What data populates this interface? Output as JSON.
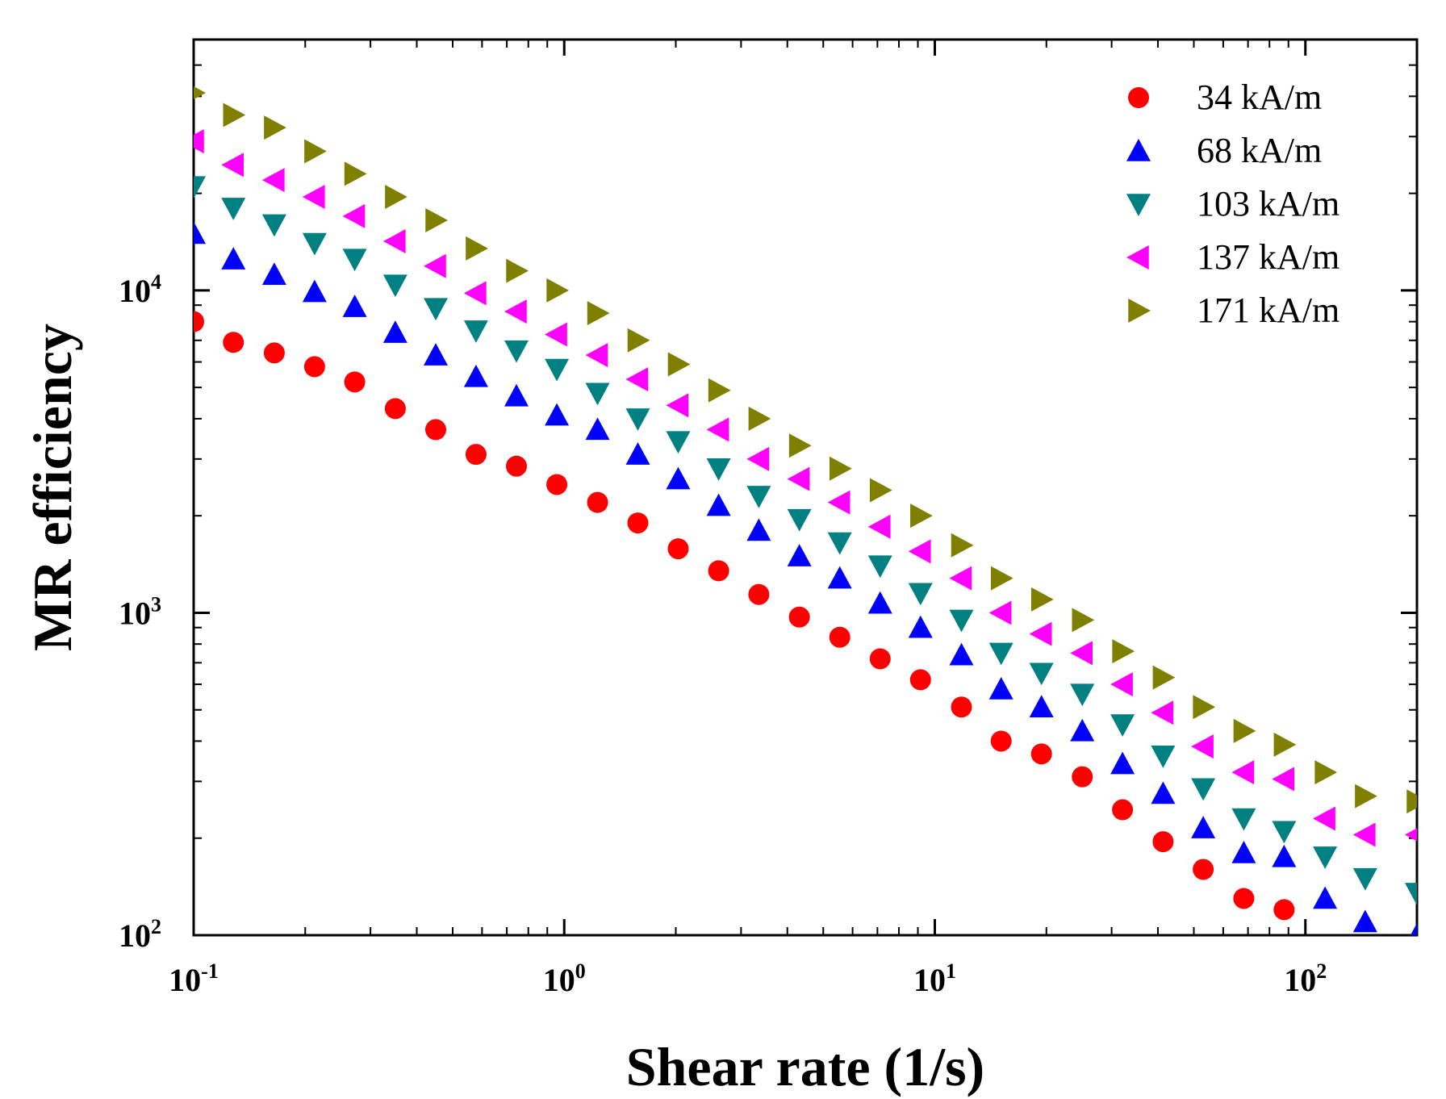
{
  "chart_data": {
    "type": "scatter",
    "title": "",
    "xlabel": "Shear rate (1/s)",
    "ylabel": "MR efficiency",
    "xscale": "log",
    "yscale": "log",
    "xlim": [
      0.1,
      200
    ],
    "ylim": [
      100,
      60000
    ],
    "legend_position": "top-right",
    "x_ticks": [
      {
        "value": 0.1,
        "base": "10",
        "exp": "-1"
      },
      {
        "value": 1,
        "base": "10",
        "exp": "0"
      },
      {
        "value": 10,
        "base": "10",
        "exp": "1"
      },
      {
        "value": 100,
        "base": "10",
        "exp": "2"
      }
    ],
    "y_ticks": [
      {
        "value": 100,
        "base": "10",
        "exp": "2"
      },
      {
        "value": 1000,
        "base": "10",
        "exp": "3"
      },
      {
        "value": 10000,
        "base": "10",
        "exp": "4"
      }
    ],
    "x": [
      0.1,
      0.128,
      0.165,
      0.212,
      0.272,
      0.35,
      0.45,
      0.578,
      0.743,
      0.955,
      1.23,
      1.58,
      2.03,
      2.61,
      3.35,
      4.31,
      5.54,
      7.12,
      9.15,
      11.8,
      15.1,
      19.4,
      25.0,
      32.1,
      41.3,
      53.0,
      68.2,
      87.6,
      113,
      145,
      200
    ],
    "series": [
      {
        "name": "34 kA/m",
        "marker": "circle",
        "color": "#ff0000",
        "values": [
          8000,
          6900,
          6400,
          5800,
          5200,
          4300,
          3700,
          3100,
          2850,
          2500,
          2200,
          1900,
          1580,
          1350,
          1140,
          970,
          840,
          720,
          620,
          510,
          400,
          365,
          310,
          245,
          195,
          160,
          130,
          120,
          null,
          null,
          null
        ]
      },
      {
        "name": "68 kA/m",
        "marker": "triangle-up",
        "color": "#0000ff",
        "values": [
          15000,
          12500,
          11200,
          9900,
          8900,
          7400,
          6300,
          5400,
          4700,
          4100,
          3700,
          3100,
          2600,
          2150,
          1800,
          1500,
          1280,
          1070,
          900,
          740,
          580,
          510,
          430,
          340,
          275,
          215,
          180,
          175,
          130,
          110,
          100
        ]
      },
      {
        "name": "103 kA/m",
        "marker": "triangle-down",
        "color": "#008080",
        "values": [
          21000,
          18000,
          16000,
          14000,
          12500,
          10400,
          8800,
          7500,
          6500,
          5700,
          4800,
          4000,
          3400,
          2800,
          2300,
          1950,
          1650,
          1400,
          1150,
          950,
          750,
          650,
          560,
          450,
          360,
          285,
          230,
          210,
          175,
          150,
          135
        ]
      },
      {
        "name": "137 kA/m",
        "marker": "triangle-left",
        "color": "#ff00ff",
        "values": [
          29000,
          24500,
          22000,
          19500,
          17000,
          14200,
          11900,
          9800,
          8600,
          7300,
          6300,
          5300,
          4400,
          3700,
          3000,
          2600,
          2200,
          1850,
          1550,
          1280,
          1000,
          860,
          750,
          600,
          490,
          385,
          320,
          305,
          230,
          205,
          205
        ]
      },
      {
        "name": "171 kA/m",
        "marker": "triangle-right",
        "color": "#808000",
        "values": [
          41000,
          35000,
          32000,
          27000,
          23000,
          19500,
          16500,
          13500,
          11500,
          10000,
          8500,
          7000,
          5900,
          4900,
          4000,
          3300,
          2800,
          2400,
          2000,
          1620,
          1280,
          1100,
          950,
          760,
          630,
          510,
          430,
          390,
          320,
          270,
          260
        ]
      }
    ]
  }
}
